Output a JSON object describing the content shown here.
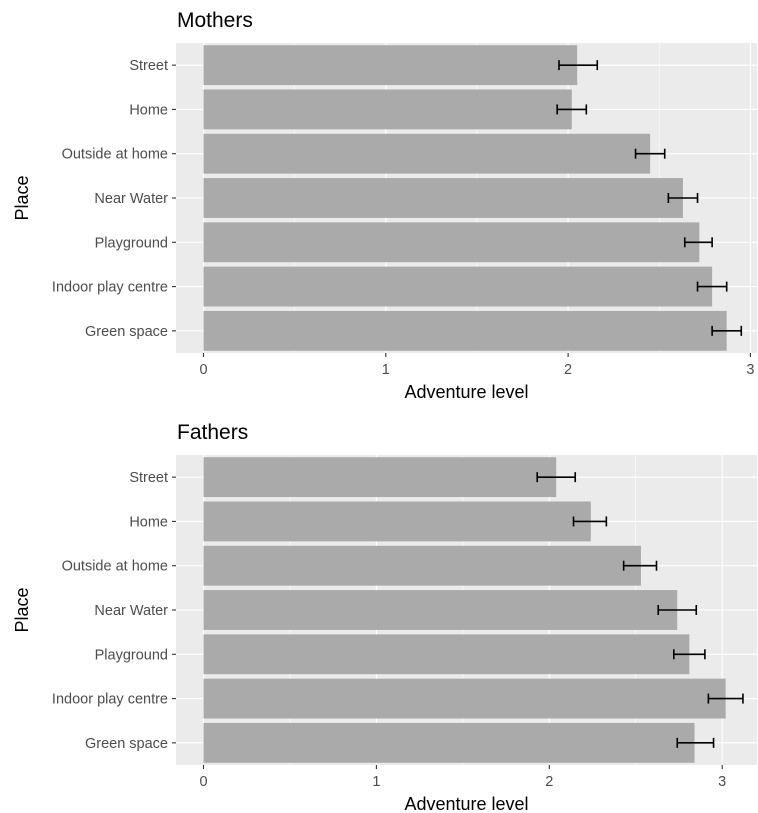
{
  "chart_data": [
    {
      "type": "bar",
      "orientation": "horizontal",
      "title": "Mothers",
      "xlabel": "Adventure level",
      "ylabel": "Place",
      "xlim": [
        0,
        3
      ],
      "xticks": [
        "0",
        "1",
        "2",
        "3"
      ],
      "categories": [
        "Street",
        "Home",
        "Outside at home",
        "Near Water",
        "Playground",
        "Indoor play centre",
        "Green space"
      ],
      "values": [
        2.05,
        2.02,
        2.45,
        2.63,
        2.72,
        2.79,
        2.87
      ],
      "error_low": [
        1.95,
        1.94,
        2.37,
        2.55,
        2.64,
        2.71,
        2.79
      ],
      "error_high": [
        2.16,
        2.1,
        2.53,
        2.71,
        2.79,
        2.87,
        2.95
      ],
      "grid": true
    },
    {
      "type": "bar",
      "orientation": "horizontal",
      "title": "Fathers",
      "xlabel": "Adventure level",
      "ylabel": "Place",
      "xlim": [
        0,
        3
      ],
      "xticks": [
        "0",
        "1",
        "2",
        "3"
      ],
      "categories": [
        "Street",
        "Home",
        "Outside at home",
        "Near Water",
        "Playground",
        "Indoor play centre",
        "Green space"
      ],
      "values": [
        2.04,
        2.24,
        2.53,
        2.74,
        2.81,
        3.02,
        2.84
      ],
      "error_low": [
        1.93,
        2.14,
        2.43,
        2.63,
        2.72,
        2.92,
        2.74
      ],
      "error_high": [
        2.15,
        2.33,
        2.62,
        2.85,
        2.9,
        3.12,
        2.95
      ],
      "grid": true
    }
  ]
}
